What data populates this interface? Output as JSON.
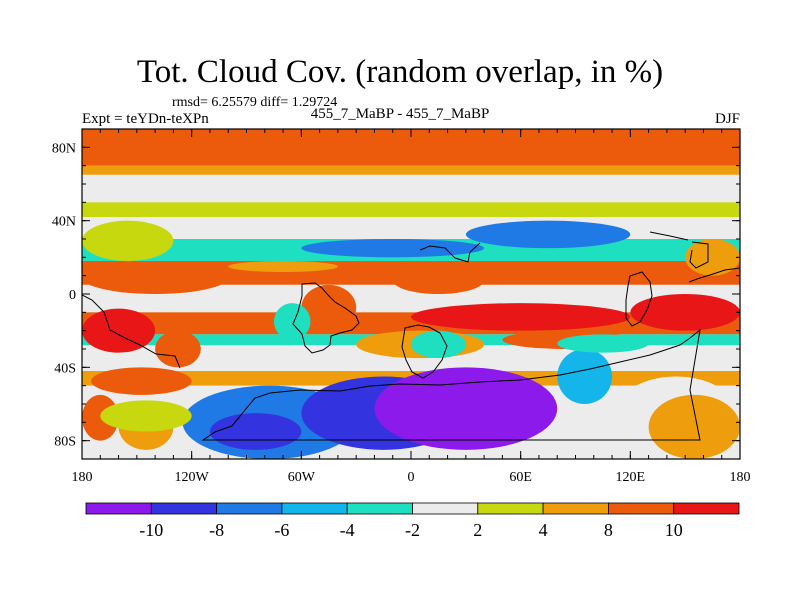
{
  "header": {
    "title": "Tot. Cloud Cov. (random overlap, in %)",
    "stats": "rmsd= 6.25579 diff= 1.29724",
    "subtitle": "455_7_MaBP - 455_7_MaBP",
    "experiment": "Expt = teYDn-teXPn",
    "season": "DJF"
  },
  "chart_data": {
    "type": "heatmap",
    "projection": "cylindrical equidistant",
    "xlim": [
      -180,
      180
    ],
    "ylim": [
      -90,
      90
    ],
    "x_ticks": [
      {
        "value": -180,
        "label": "180"
      },
      {
        "value": -120,
        "label": "120W"
      },
      {
        "value": -60,
        "label": "60W"
      },
      {
        "value": 0,
        "label": "0"
      },
      {
        "value": 60,
        "label": "60E"
      },
      {
        "value": 120,
        "label": "120E"
      },
      {
        "value": 180,
        "label": "180"
      }
    ],
    "y_ticks": [
      {
        "value": 80,
        "label": "80N"
      },
      {
        "value": 40,
        "label": "40N"
      },
      {
        "value": 0,
        "label": "0"
      },
      {
        "value": -40,
        "label": "40S"
      },
      {
        "value": -80,
        "label": "80S"
      }
    ],
    "colorbar": {
      "levels": [
        -12,
        -10,
        -8,
        -6,
        -4,
        -2,
        2,
        4,
        8,
        10,
        12
      ],
      "labeled_levels": [
        "-10",
        "-8",
        "-6",
        "-4",
        "-2",
        "2",
        "4",
        "8",
        "10"
      ],
      "colors": [
        "#8c1aeb",
        "#3333e0",
        "#1f7ae6",
        "#13b5eb",
        "#1ee0c0",
        "#ececec",
        "#c8d80e",
        "#ee9d0c",
        "#ec5a0c",
        "#e81616"
      ]
    },
    "bands": [
      {
        "lat": [
          90,
          70
        ],
        "level": 8
      },
      {
        "lat": [
          70,
          65
        ],
        "level": 4
      },
      {
        "lat": [
          65,
          50
        ],
        "level": 0
      },
      {
        "lat": [
          50,
          42
        ],
        "level": 2
      },
      {
        "lat": [
          42,
          30
        ],
        "level": 0
      },
      {
        "lat": [
          30,
          18
        ],
        "level": -4
      },
      {
        "lat": [
          18,
          5
        ],
        "level": 8
      },
      {
        "lat": [
          5,
          -10
        ],
        "level": 0
      },
      {
        "lat": [
          -10,
          -22
        ],
        "level": 8
      },
      {
        "lat": [
          -22,
          -28
        ],
        "level": -4
      },
      {
        "lat": [
          -28,
          -42
        ],
        "level": 0
      },
      {
        "lat": [
          -42,
          -50
        ],
        "level": 4
      },
      {
        "lat": [
          -50,
          -62
        ],
        "level": 0
      },
      {
        "lat": [
          -62,
          -90
        ],
        "level": 0
      }
    ],
    "patches": [
      {
        "lon": [
          -180,
          -140
        ],
        "lat": [
          -8,
          -32
        ],
        "level": 11
      },
      {
        "lon": [
          -140,
          -115
        ],
        "lat": [
          -20,
          -40
        ],
        "level": 8
      },
      {
        "lon": [
          -175,
          -120
        ],
        "lat": [
          -40,
          -55
        ],
        "level": 8
      },
      {
        "lon": [
          -180,
          -160
        ],
        "lat": [
          -55,
          -80
        ],
        "level": 8
      },
      {
        "lon": [
          -160,
          -130
        ],
        "lat": [
          -60,
          -85
        ],
        "level": 4
      },
      {
        "lon": [
          -125,
          -30
        ],
        "lat": [
          -50,
          -90
        ],
        "level": -7
      },
      {
        "lon": [
          -110,
          -60
        ],
        "lat": [
          -65,
          -85
        ],
        "level": -9
      },
      {
        "lon": [
          -60,
          30
        ],
        "lat": [
          -45,
          -85
        ],
        "level": -9
      },
      {
        "lon": [
          -20,
          80
        ],
        "lat": [
          -40,
          -85
        ],
        "level": -11
      },
      {
        "lon": [
          80,
          110
        ],
        "lat": [
          -30,
          -60
        ],
        "level": -6
      },
      {
        "lon": [
          110,
          180
        ],
        "lat": [
          -45,
          -90
        ],
        "level": 0
      },
      {
        "lon": [
          130,
          180
        ],
        "lat": [
          -55,
          -90
        ],
        "level": 4
      },
      {
        "lon": [
          0,
          120
        ],
        "lat": [
          -5,
          -20
        ],
        "level": 11
      },
      {
        "lon": [
          120,
          180
        ],
        "lat": [
          0,
          -20
        ],
        "level": 11
      },
      {
        "lon": [
          50,
          120
        ],
        "lat": [
          -20,
          -30
        ],
        "level": 8
      },
      {
        "lon": [
          80,
          130
        ],
        "lat": [
          -22,
          -32
        ],
        "level": -4
      },
      {
        "lon": [
          -60,
          40
        ],
        "lat": [
          30,
          20
        ],
        "level": -7
      },
      {
        "lon": [
          30,
          120
        ],
        "lat": [
          40,
          25
        ],
        "level": -8
      },
      {
        "lon": [
          -100,
          -40
        ],
        "lat": [
          18,
          12
        ],
        "level": 4
      },
      {
        "lon": [
          -180,
          -130
        ],
        "lat": [
          40,
          18
        ],
        "level": 2
      },
      {
        "lon": [
          -180,
          -100
        ],
        "lat": [
          18,
          0
        ],
        "level": 8
      },
      {
        "lon": [
          -10,
          40
        ],
        "lat": [
          15,
          0
        ],
        "level": 8
      },
      {
        "lon": [
          -60,
          -30
        ],
        "lat": [
          5,
          -20
        ],
        "level": 8
      },
      {
        "lon": [
          -30,
          40
        ],
        "lat": [
          -20,
          -35
        ],
        "level": 4
      },
      {
        "lon": [
          0,
          30
        ],
        "lat": [
          -20,
          -35
        ],
        "level": -4
      },
      {
        "lon": [
          -75,
          -55
        ],
        "lat": [
          -5,
          -25
        ],
        "level": -4
      },
      {
        "lon": [
          150,
          180
        ],
        "lat": [
          30,
          10
        ],
        "level": 4
      },
      {
        "lon": [
          -170,
          -120
        ],
        "lat": [
          -58,
          -75
        ],
        "level": 2
      }
    ]
  },
  "colorbar_labels": [
    "-10",
    "-8",
    "-6",
    "-4",
    "-2",
    "2",
    "4",
    "8",
    "10"
  ]
}
